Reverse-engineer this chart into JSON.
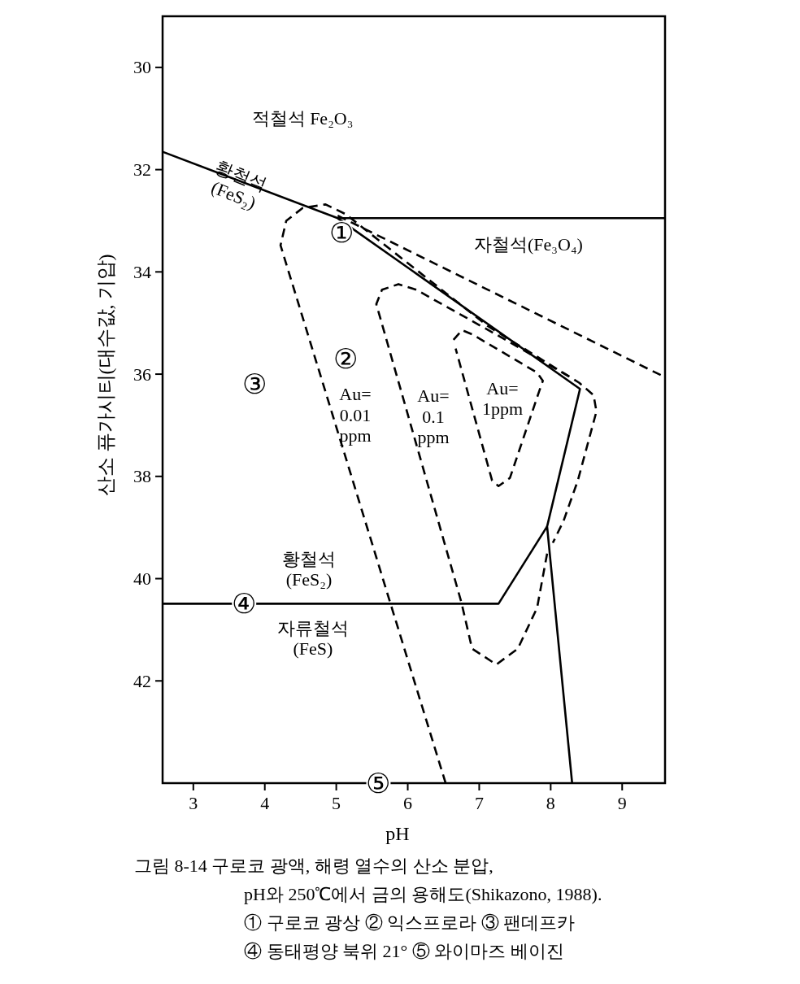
{
  "chart_data": {
    "type": "line",
    "xlabel": "pH",
    "ylabel": "산소 퓨가시티(대수값, 기압)",
    "xlim": [
      2.57,
      9.6
    ],
    "ylim": [
      44,
      29
    ],
    "xticks": [
      3,
      4,
      5,
      6,
      7,
      8,
      9
    ],
    "yticks": [
      30,
      32,
      34,
      36,
      38,
      40,
      42
    ],
    "series": [
      {
        "color": "#000000",
        "line_style": "solid",
        "x": [
          2.57,
          5.02,
          8.41,
          7.95,
          8.3
        ],
        "values": [
          31.65,
          32.95,
          36.29,
          38.98,
          44.0
        ]
      },
      {
        "color": "#000000",
        "line_style": "solid",
        "x": [
          2.57,
          7.27,
          7.95
        ],
        "values": [
          40.49,
          40.49,
          38.98
        ]
      },
      {
        "color": "#000000",
        "line_style": "solid",
        "x": [
          5.02,
          9.6
        ],
        "values": [
          32.95,
          32.95
        ]
      },
      {
        "color": "#000000",
        "line_style": "dashed",
        "x": [
          5.02,
          9.6
        ],
        "values": [
          32.9,
          36.06
        ]
      },
      {
        "color": "#000000",
        "line_style": "dashed",
        "x": [
          6.53,
          4.22,
          4.3,
          4.53,
          4.85,
          5.13,
          7.12,
          8.4,
          8.6,
          8.64,
          8.38,
          8.18,
          8.03
        ],
        "values": [
          44.0,
          33.48,
          33.0,
          32.75,
          32.68,
          32.87,
          35.06,
          36.17,
          36.41,
          36.73,
          38.08,
          38.87,
          39.3
        ]
      },
      {
        "color": "#000000",
        "line_style": "dashed",
        "x": [
          7.95,
          7.81,
          7.54,
          7.24,
          6.9,
          6.75,
          5.56,
          5.64,
          5.87,
          6.12,
          7.27,
          8.26
        ],
        "values": [
          39.51,
          40.57,
          41.37,
          41.68,
          41.37,
          40.46,
          34.63,
          34.35,
          34.24,
          34.35,
          35.25,
          36.05
        ]
      },
      {
        "color": "#000000",
        "line_style": "dashed",
        "x": [
          6.64,
          6.76,
          6.9,
          7.81,
          7.89,
          7.84,
          7.43,
          7.27,
          7.18,
          6.67
        ],
        "values": [
          35.33,
          35.14,
          35.22,
          35.97,
          36.13,
          36.33,
          38.03,
          38.19,
          38.08,
          35.5
        ]
      }
    ],
    "annotations": [
      "적철석 Fe₂O₃",
      "황철석\n(FeS₂)",
      "자철석(Fe₃O₄)",
      {
        "text": "①",
        "x": 5.07,
        "y": 33.24
      },
      {
        "text": "②",
        "x": 5.13,
        "y": 35.7
      },
      {
        "text": "③",
        "x": 3.85,
        "y": 36.2
      },
      {
        "text": "④",
        "x": 3.71,
        "y": 40.49
      },
      {
        "text": "⑤",
        "x": 5.59,
        "y": 44.0
      },
      "Au=\n0.01\nppm",
      "Au=\n0.1\nppm",
      "Au=\n1ppm",
      "황철석\n(FeS₂)",
      "자류철석\n(FeS)",
      "그림 8-14  구로코 광액, 해령 열수의 산소 분압,",
      "pH와 250℃에서 금의 용해도(Shikazono, 1988).",
      "① 구로코 광상 ② 익스프로라 ③ 팬데프카",
      "④ 동태평양 북위 21° ⑤ 와이마즈 베이진"
    ]
  }
}
